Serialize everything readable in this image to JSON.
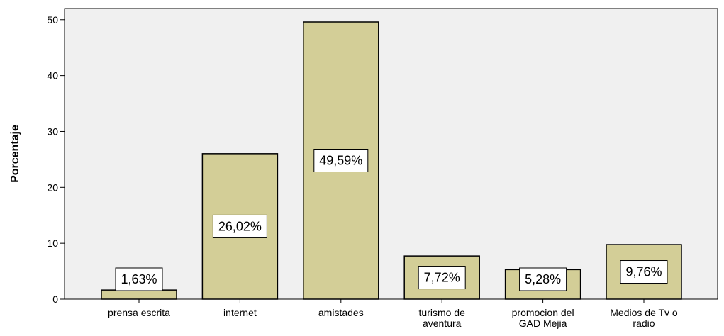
{
  "chart_data": {
    "type": "bar",
    "title": "",
    "xlabel": "",
    "ylabel": "Porcentaje",
    "ylim": [
      0,
      52
    ],
    "yticks": [
      0,
      10,
      20,
      30,
      40,
      50
    ],
    "categories": [
      [
        "prensa escrita"
      ],
      [
        "internet"
      ],
      [
        "amistades"
      ],
      [
        "turismo de",
        "aventura"
      ],
      [
        "promocion del",
        "GAD Mejia"
      ],
      [
        "Medios de Tv o",
        "radio"
      ]
    ],
    "values": [
      1.63,
      26.02,
      49.59,
      7.72,
      5.28,
      9.76
    ],
    "data_labels": [
      "1,63%",
      "26,02%",
      "49,59%",
      "7,72%",
      "5,28%",
      "9,76%"
    ],
    "grid": false,
    "legend": "none",
    "colors": {
      "plot_background": "#f0f0f0",
      "bar_fill": "#d3ce97",
      "bar_stroke": "#000000",
      "label_box_fill": "#ffffff"
    }
  }
}
